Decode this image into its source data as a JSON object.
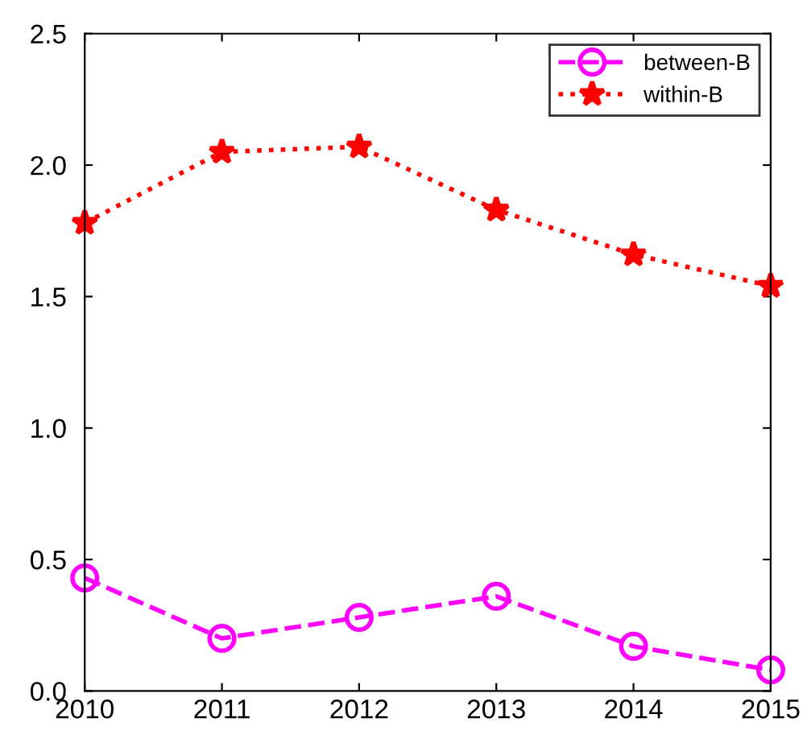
{
  "chart_data": {
    "type": "line",
    "x": [
      2010,
      2011,
      2012,
      2013,
      2014,
      2015
    ],
    "series": [
      {
        "name": "between-B",
        "color": "#ff00ff",
        "marker": "circle",
        "line_style": "dashed",
        "values": [
          0.43,
          0.2,
          0.28,
          0.36,
          0.17,
          0.08
        ]
      },
      {
        "name": "within-B",
        "color": "#ff0000",
        "marker": "star",
        "line_style": "dotted",
        "values": [
          1.78,
          2.05,
          2.07,
          1.83,
          1.66,
          1.54
        ]
      }
    ],
    "xlim": [
      2010,
      2015
    ],
    "xticks": [
      2010,
      2011,
      2012,
      2013,
      2014,
      2015
    ],
    "ylim": [
      0,
      2.5
    ],
    "yticks": [
      {
        "value": 0,
        "label": "0.0"
      },
      {
        "value": 0.5,
        "label": "0.5"
      },
      {
        "value": 1,
        "label": "1.0"
      },
      {
        "value": 1.5,
        "label": "1.5"
      },
      {
        "value": 2,
        "label": "2.0"
      },
      {
        "value": 2.5,
        "label": "2.5"
      }
    ],
    "grid": false,
    "legend": "top right"
  }
}
